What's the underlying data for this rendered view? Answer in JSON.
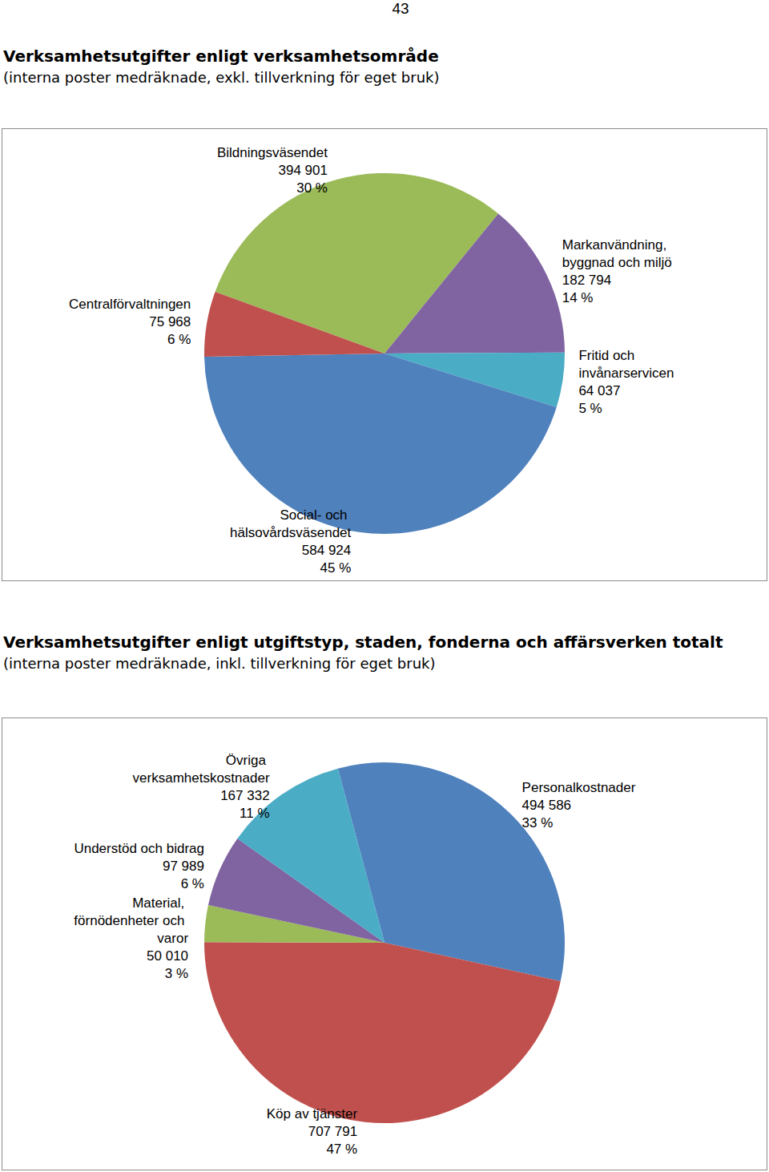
{
  "page": {
    "number": "43"
  },
  "chart_data": [
    {
      "type": "pie",
      "title": "Verksamhetsutgifter enligt verksamhetsområde",
      "subtitle": "(interna poster medräknade, exkl. tillverkning för eget bruk)",
      "categories": [
        "Bildningsväsendet",
        "Markanvändning, byggnad och miljö",
        "Fritid och invånarservicen",
        "Social- och hälsovårdsväsendet",
        "Centralförvaltningen"
      ],
      "values": [
        394901,
        182794,
        64037,
        584924,
        75968
      ],
      "value_labels": [
        "394 901",
        "182 794",
        "64 037",
        "584 924",
        "75 968"
      ],
      "percent_labels": [
        "30 %",
        "14 %",
        "5 %",
        "45 %",
        "6 %"
      ],
      "colors": [
        "#9BBB59",
        "#8064A2",
        "#4BACC6",
        "#4F81BD",
        "#C0504D"
      ],
      "data_labels": true
    },
    {
      "type": "pie",
      "title": "Verksamhetsutgifter enligt utgiftstyp, staden, fonderna och affärsverken totalt",
      "subtitle": "(interna poster medräknade, inkl. tillverkning för eget bruk)",
      "categories": [
        "Personalkostnader",
        "Köp av tjänster",
        "Material, förnödenheter och varor",
        "Understöd och bidrag",
        "Övriga verksamhetskostnader"
      ],
      "values": [
        494586,
        707791,
        50010,
        97989,
        167332
      ],
      "value_labels": [
        "494 586",
        "707 791",
        "50 010",
        "97 989",
        "167 332"
      ],
      "percent_labels": [
        "33 %",
        "47 %",
        "3 %",
        "6 %",
        "11 %"
      ],
      "colors": [
        "#4F81BD",
        "#C0504D",
        "#9BBB59",
        "#8064A2",
        "#4BACC6"
      ],
      "data_labels": true
    }
  ]
}
